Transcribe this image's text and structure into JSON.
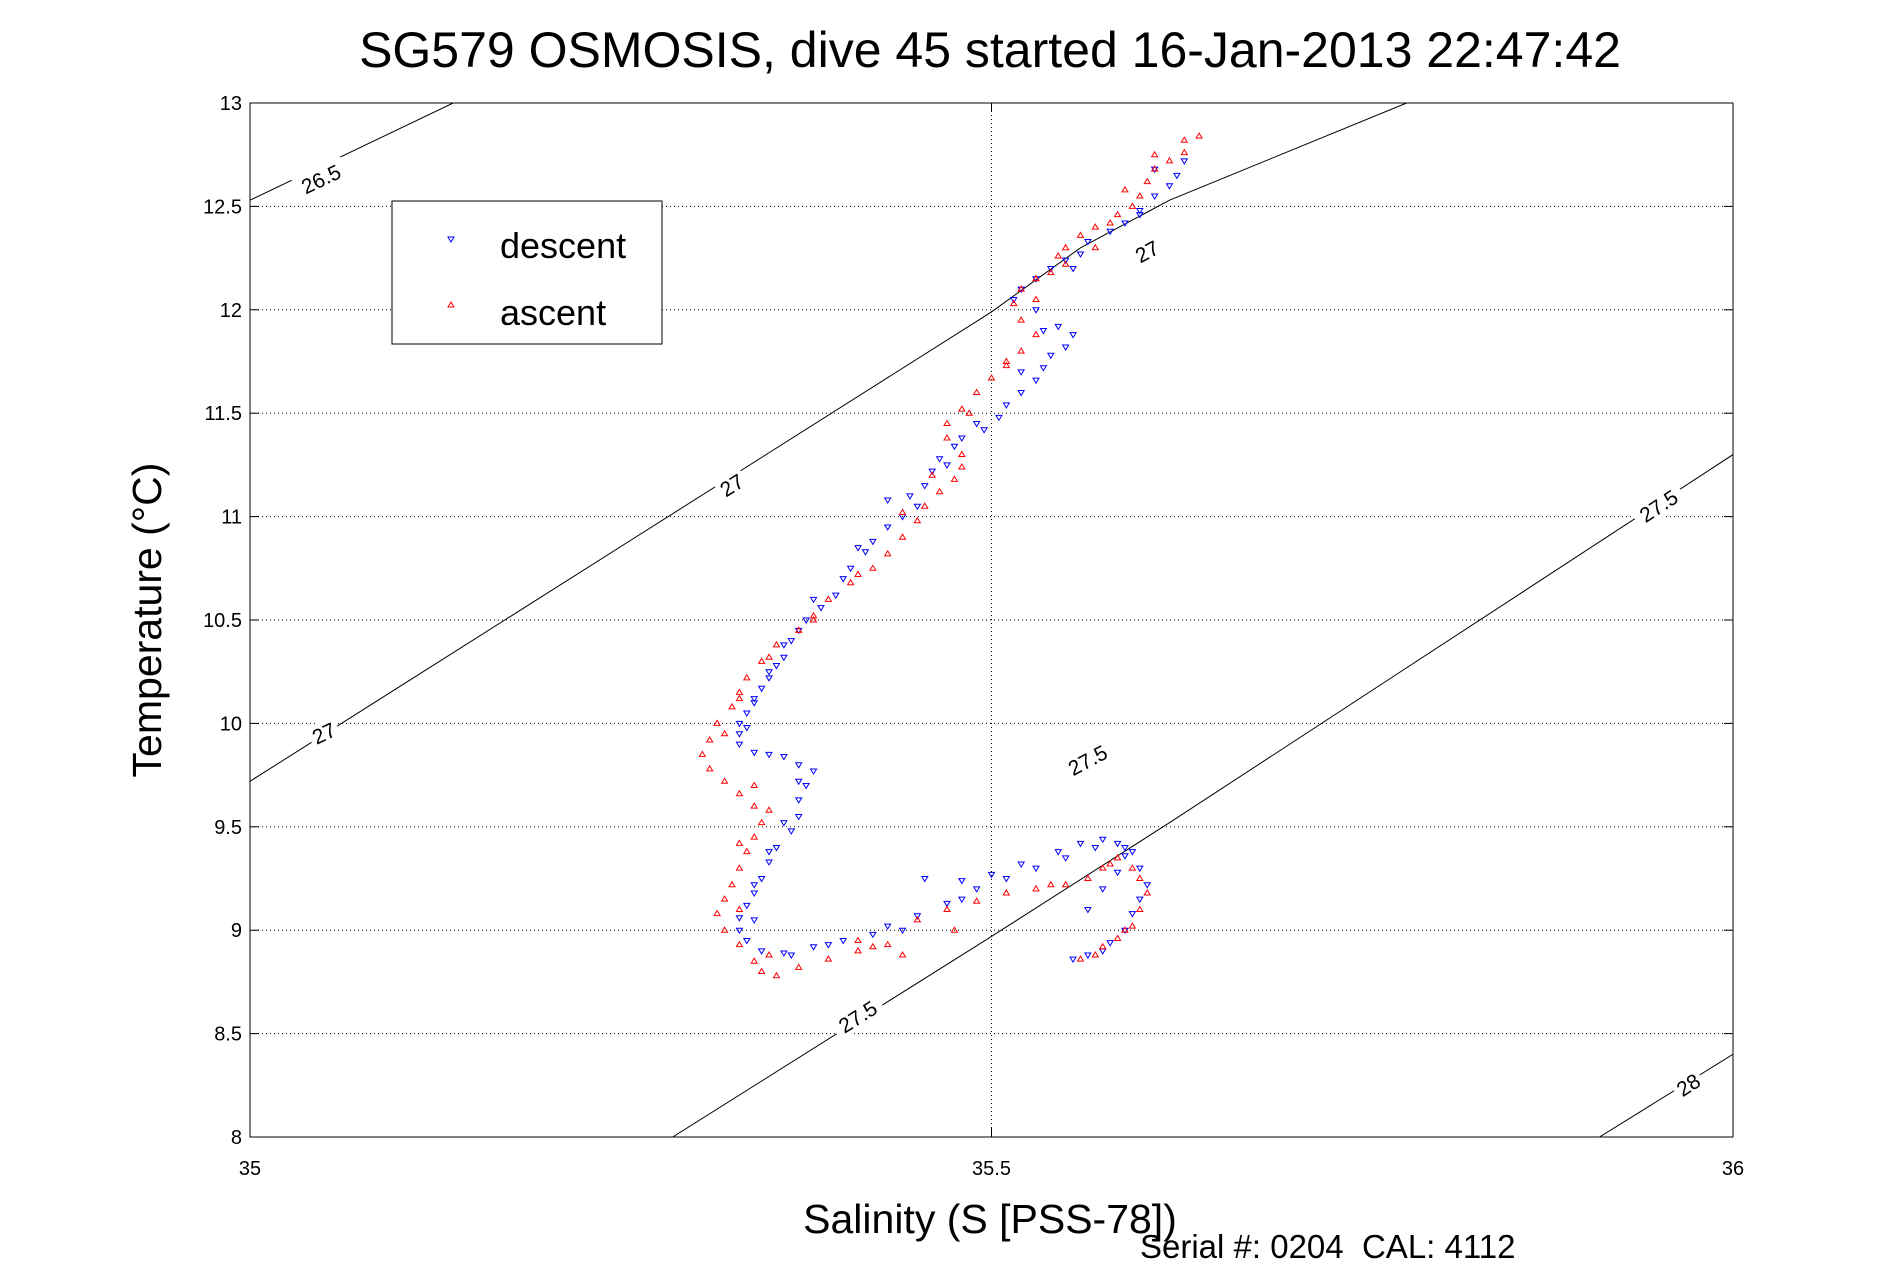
{
  "chart_data": {
    "type": "scatter",
    "title": "SG579 OSMOSIS, dive 45 started 16-Jan-2013 22:47:42",
    "xlabel": "Salinity (S [PSS-78])",
    "ylabel": "Temperature (°C)",
    "xlim": [
      35,
      36
    ],
    "ylim": [
      8,
      13
    ],
    "x_ticks": [
      "35",
      "35.5",
      "36"
    ],
    "y_ticks": [
      "8",
      "8.5",
      "9",
      "9.5",
      "10",
      "10.5",
      "11",
      "11.5",
      "12",
      "12.5",
      "13"
    ],
    "grid": true,
    "legend_position": "top-left",
    "footer": "Serial #: 0204  CAL: 4112",
    "density_contours": [
      {
        "sigma": "26.5",
        "line": [
          [
            35.0,
            12.53
          ],
          [
            35.137,
            13.0
          ]
        ]
      },
      {
        "sigma": "27",
        "line": [
          [
            35.0,
            9.72
          ],
          [
            35.5,
            11.99
          ],
          [
            35.56,
            12.3
          ],
          [
            35.62,
            12.53
          ],
          [
            35.78,
            13.0
          ]
        ]
      },
      {
        "sigma": "27.5",
        "line": [
          [
            35.285,
            8.0
          ],
          [
            35.5,
            8.97
          ],
          [
            35.62,
            9.52
          ],
          [
            36.0,
            11.3
          ]
        ]
      },
      {
        "sigma": "28",
        "line": [
          [
            35.91,
            8.0
          ],
          [
            36.0,
            8.4
          ]
        ]
      }
    ],
    "contour_labels": [
      {
        "text": "26.5",
        "x": 35.048,
        "y": 12.63
      },
      {
        "text": "27",
        "x": 35.605,
        "y": 12.28
      },
      {
        "text": "27",
        "x": 35.325,
        "y": 11.15
      },
      {
        "text": "27",
        "x": 35.05,
        "y": 9.95
      },
      {
        "text": "27.5",
        "x": 35.95,
        "y": 11.05
      },
      {
        "text": "27.5",
        "x": 35.565,
        "y": 9.82
      },
      {
        "text": "27.5",
        "x": 35.41,
        "y": 8.58
      },
      {
        "text": "28",
        "x": 35.97,
        "y": 8.25
      }
    ],
    "series": [
      {
        "name": "descent",
        "color": "#0000ff",
        "marker": "triangle-down",
        "points": [
          [
            35.63,
            12.72
          ],
          [
            35.625,
            12.65
          ],
          [
            35.62,
            12.6
          ],
          [
            35.61,
            12.55
          ],
          [
            35.6,
            12.48
          ],
          [
            35.59,
            12.42
          ],
          [
            35.58,
            12.38
          ],
          [
            35.565,
            12.33
          ],
          [
            35.56,
            12.27
          ],
          [
            35.55,
            12.24
          ],
          [
            35.54,
            12.2
          ],
          [
            35.53,
            12.15
          ],
          [
            35.52,
            12.1
          ],
          [
            35.515,
            12.05
          ],
          [
            35.53,
            12.0
          ],
          [
            35.545,
            11.92
          ],
          [
            35.555,
            11.88
          ],
          [
            35.55,
            11.82
          ],
          [
            35.54,
            11.78
          ],
          [
            35.535,
            11.72
          ],
          [
            35.53,
            11.66
          ],
          [
            35.52,
            11.6
          ],
          [
            35.51,
            11.54
          ],
          [
            35.505,
            11.48
          ],
          [
            35.495,
            11.42
          ],
          [
            35.48,
            11.38
          ],
          [
            35.475,
            11.34
          ],
          [
            35.465,
            11.28
          ],
          [
            35.46,
            11.22
          ],
          [
            35.455,
            11.15
          ],
          [
            35.445,
            11.1
          ],
          [
            35.45,
            11.05
          ],
          [
            35.44,
            11.0
          ],
          [
            35.43,
            10.95
          ],
          [
            35.42,
            10.88
          ],
          [
            35.415,
            10.83
          ],
          [
            35.405,
            10.75
          ],
          [
            35.4,
            10.7
          ],
          [
            35.395,
            10.62
          ],
          [
            35.385,
            10.56
          ],
          [
            35.375,
            10.5
          ],
          [
            35.37,
            10.45
          ],
          [
            35.36,
            10.38
          ],
          [
            35.36,
            10.32
          ],
          [
            35.355,
            10.28
          ],
          [
            35.35,
            10.22
          ],
          [
            35.345,
            10.17
          ],
          [
            35.34,
            10.12
          ],
          [
            35.335,
            10.05
          ],
          [
            35.33,
            10.0
          ],
          [
            35.33,
            9.95
          ],
          [
            35.33,
            9.9
          ],
          [
            35.34,
            9.86
          ],
          [
            35.36,
            9.84
          ],
          [
            35.37,
            9.8
          ],
          [
            35.38,
            9.77
          ],
          [
            35.375,
            9.7
          ],
          [
            35.37,
            9.63
          ],
          [
            35.37,
            9.55
          ],
          [
            35.365,
            9.48
          ],
          [
            35.355,
            9.4
          ],
          [
            35.35,
            9.33
          ],
          [
            35.345,
            9.25
          ],
          [
            35.34,
            9.18
          ],
          [
            35.335,
            9.12
          ],
          [
            35.33,
            9.06
          ],
          [
            35.33,
            9.0
          ],
          [
            35.335,
            8.95
          ],
          [
            35.345,
            8.9
          ],
          [
            35.36,
            8.89
          ],
          [
            35.38,
            8.92
          ],
          [
            35.4,
            8.95
          ],
          [
            35.42,
            8.98
          ],
          [
            35.43,
            9.02
          ],
          [
            35.45,
            9.07
          ],
          [
            35.47,
            9.13
          ],
          [
            35.49,
            9.2
          ],
          [
            35.51,
            9.25
          ],
          [
            35.53,
            9.3
          ],
          [
            35.55,
            9.35
          ],
          [
            35.57,
            9.4
          ],
          [
            35.585,
            9.42
          ],
          [
            35.595,
            9.38
          ],
          [
            35.6,
            9.3
          ],
          [
            35.605,
            9.22
          ],
          [
            35.6,
            9.15
          ],
          [
            35.595,
            9.08
          ],
          [
            35.59,
            9.0
          ],
          [
            35.58,
            8.94
          ],
          [
            35.575,
            8.9
          ],
          [
            35.565,
            8.88
          ],
          [
            35.555,
            8.86
          ],
          [
            35.565,
            9.1
          ],
          [
            35.575,
            9.2
          ],
          [
            35.585,
            9.28
          ],
          [
            35.59,
            9.36
          ],
          [
            35.455,
            9.25
          ],
          [
            35.48,
            9.24
          ],
          [
            35.5,
            9.27
          ],
          [
            35.52,
            9.32
          ],
          [
            35.545,
            9.38
          ],
          [
            35.56,
            9.42
          ],
          [
            35.575,
            9.44
          ],
          [
            35.59,
            9.4
          ],
          [
            35.61,
            12.68
          ],
          [
            35.6,
            12.46
          ],
          [
            35.555,
            12.2
          ],
          [
            35.535,
            11.9
          ],
          [
            35.52,
            11.7
          ],
          [
            35.49,
            11.45
          ],
          [
            35.47,
            11.25
          ],
          [
            35.43,
            11.08
          ],
          [
            35.41,
            10.85
          ],
          [
            35.38,
            10.6
          ],
          [
            35.365,
            10.4
          ],
          [
            35.35,
            10.25
          ],
          [
            35.34,
            10.1
          ],
          [
            35.335,
            9.98
          ],
          [
            35.35,
            9.85
          ],
          [
            35.37,
            9.72
          ],
          [
            35.36,
            9.52
          ],
          [
            35.35,
            9.38
          ],
          [
            35.34,
            9.22
          ],
          [
            35.34,
            9.05
          ],
          [
            35.365,
            8.88
          ],
          [
            35.39,
            8.93
          ],
          [
            35.44,
            9.0
          ],
          [
            35.48,
            9.15
          ]
        ]
      },
      {
        "name": "ascent",
        "color": "#ff0000",
        "marker": "triangle-up",
        "points": [
          [
            35.64,
            12.84
          ],
          [
            35.63,
            12.82
          ],
          [
            35.63,
            12.76
          ],
          [
            35.62,
            12.72
          ],
          [
            35.61,
            12.68
          ],
          [
            35.605,
            12.62
          ],
          [
            35.6,
            12.55
          ],
          [
            35.595,
            12.5
          ],
          [
            35.585,
            12.46
          ],
          [
            35.58,
            12.42
          ],
          [
            35.57,
            12.4
          ],
          [
            35.56,
            12.36
          ],
          [
            35.55,
            12.3
          ],
          [
            35.545,
            12.26
          ],
          [
            35.55,
            12.22
          ],
          [
            35.54,
            12.18
          ],
          [
            35.53,
            12.15
          ],
          [
            35.52,
            12.1
          ],
          [
            35.515,
            12.03
          ],
          [
            35.52,
            11.95
          ],
          [
            35.53,
            11.88
          ],
          [
            35.52,
            11.8
          ],
          [
            35.51,
            11.73
          ],
          [
            35.5,
            11.67
          ],
          [
            35.49,
            11.6
          ],
          [
            35.48,
            11.52
          ],
          [
            35.47,
            11.45
          ],
          [
            35.47,
            11.38
          ],
          [
            35.48,
            11.3
          ],
          [
            35.48,
            11.24
          ],
          [
            35.475,
            11.18
          ],
          [
            35.465,
            11.12
          ],
          [
            35.455,
            11.05
          ],
          [
            35.45,
            10.98
          ],
          [
            35.44,
            10.9
          ],
          [
            35.43,
            10.82
          ],
          [
            35.42,
            10.75
          ],
          [
            35.405,
            10.68
          ],
          [
            35.39,
            10.6
          ],
          [
            35.38,
            10.52
          ],
          [
            35.37,
            10.45
          ],
          [
            35.355,
            10.38
          ],
          [
            35.345,
            10.3
          ],
          [
            35.335,
            10.22
          ],
          [
            35.33,
            10.15
          ],
          [
            35.325,
            10.08
          ],
          [
            35.315,
            10.0
          ],
          [
            35.31,
            9.92
          ],
          [
            35.305,
            9.85
          ],
          [
            35.31,
            9.78
          ],
          [
            35.32,
            9.72
          ],
          [
            35.33,
            9.66
          ],
          [
            35.34,
            9.6
          ],
          [
            35.35,
            9.58
          ],
          [
            35.345,
            9.52
          ],
          [
            35.34,
            9.45
          ],
          [
            35.335,
            9.38
          ],
          [
            35.33,
            9.3
          ],
          [
            35.325,
            9.22
          ],
          [
            35.32,
            9.15
          ],
          [
            35.315,
            9.08
          ],
          [
            35.32,
            9.0
          ],
          [
            35.33,
            8.93
          ],
          [
            35.34,
            8.85
          ],
          [
            35.345,
            8.8
          ],
          [
            35.355,
            8.78
          ],
          [
            35.37,
            8.82
          ],
          [
            35.39,
            8.86
          ],
          [
            35.41,
            8.9
          ],
          [
            35.43,
            8.93
          ],
          [
            35.44,
            8.88
          ],
          [
            35.41,
            8.95
          ],
          [
            35.45,
            9.05
          ],
          [
            35.47,
            9.1
          ],
          [
            35.49,
            9.14
          ],
          [
            35.51,
            9.18
          ],
          [
            35.53,
            9.2
          ],
          [
            35.55,
            9.22
          ],
          [
            35.565,
            9.25
          ],
          [
            35.575,
            9.3
          ],
          [
            35.585,
            9.35
          ],
          [
            35.595,
            9.3
          ],
          [
            35.6,
            9.25
          ],
          [
            35.605,
            9.18
          ],
          [
            35.6,
            9.1
          ],
          [
            35.595,
            9.02
          ],
          [
            35.585,
            8.96
          ],
          [
            35.575,
            8.92
          ],
          [
            35.57,
            8.88
          ],
          [
            35.56,
            8.86
          ],
          [
            35.61,
            12.75
          ],
          [
            35.59,
            12.58
          ],
          [
            35.57,
            12.3
          ],
          [
            35.53,
            12.05
          ],
          [
            35.51,
            11.75
          ],
          [
            35.485,
            11.5
          ],
          [
            35.46,
            11.2
          ],
          [
            35.44,
            11.02
          ],
          [
            35.41,
            10.72
          ],
          [
            35.38,
            10.5
          ],
          [
            35.35,
            10.32
          ],
          [
            35.33,
            10.12
          ],
          [
            35.32,
            9.95
          ],
          [
            35.34,
            9.7
          ],
          [
            35.33,
            9.42
          ],
          [
            35.33,
            9.1
          ],
          [
            35.35,
            8.88
          ],
          [
            35.42,
            8.92
          ],
          [
            35.475,
            9.0
          ],
          [
            35.54,
            9.22
          ],
          [
            35.58,
            9.32
          ],
          [
            35.59,
            9.0
          ]
        ]
      }
    ]
  }
}
